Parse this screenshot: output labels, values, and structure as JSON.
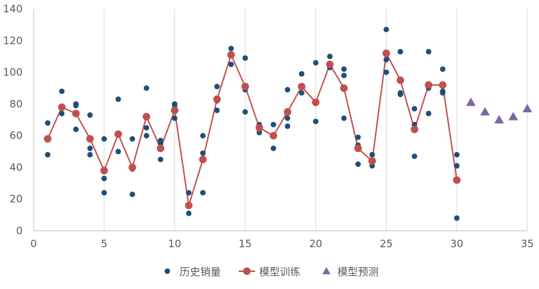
{
  "chart_data": {
    "type": "scatter",
    "xlim": [
      0,
      35
    ],
    "ylim": [
      0,
      140
    ],
    "x_ticks": [
      0,
      5,
      10,
      15,
      20,
      25,
      30,
      35
    ],
    "y_ticks": [
      0,
      20,
      40,
      60,
      80,
      100,
      120,
      140
    ],
    "grid": "vertical",
    "legend_position": "bottom",
    "colors": {
      "history": "#1f4e79",
      "training": "#c0504d",
      "forecast": "#8064a2",
      "grid": "#d9d9d9",
      "axis": "#bfbfbf",
      "text": "#595959"
    },
    "series": [
      {
        "name": "历史销量",
        "type": "scatter",
        "marker": "circle",
        "points": [
          [
            1,
            68
          ],
          [
            1,
            58
          ],
          [
            1,
            48
          ],
          [
            2,
            88
          ],
          [
            2,
            74
          ],
          [
            3,
            80
          ],
          [
            3,
            79
          ],
          [
            3,
            64
          ],
          [
            4,
            73
          ],
          [
            4,
            52
          ],
          [
            4,
            48
          ],
          [
            5,
            58
          ],
          [
            5,
            33
          ],
          [
            5,
            24
          ],
          [
            6,
            83
          ],
          [
            6,
            50
          ],
          [
            7,
            58
          ],
          [
            7,
            39
          ],
          [
            7,
            23
          ],
          [
            8,
            90
          ],
          [
            8,
            65
          ],
          [
            8,
            60
          ],
          [
            9,
            57
          ],
          [
            9,
            55
          ],
          [
            9,
            45
          ],
          [
            10,
            80
          ],
          [
            10,
            79
          ],
          [
            10,
            71
          ],
          [
            11,
            24
          ],
          [
            11,
            11
          ],
          [
            12,
            60
          ],
          [
            12,
            49
          ],
          [
            12,
            24
          ],
          [
            13,
            91
          ],
          [
            13,
            82
          ],
          [
            13,
            76
          ],
          [
            14,
            115
          ],
          [
            14,
            105
          ],
          [
            15,
            109
          ],
          [
            15,
            89
          ],
          [
            15,
            75
          ],
          [
            16,
            67
          ],
          [
            16,
            62
          ],
          [
            17,
            67
          ],
          [
            17,
            52
          ],
          [
            18,
            89
          ],
          [
            18,
            71
          ],
          [
            18,
            66
          ],
          [
            19,
            99
          ],
          [
            19,
            87
          ],
          [
            20,
            106
          ],
          [
            20,
            69
          ],
          [
            21,
            110
          ],
          [
            21,
            103
          ],
          [
            22,
            102
          ],
          [
            22,
            98
          ],
          [
            22,
            71
          ],
          [
            23,
            59
          ],
          [
            23,
            54
          ],
          [
            23,
            42
          ],
          [
            24,
            48
          ],
          [
            24,
            44
          ],
          [
            24,
            41
          ],
          [
            25,
            127
          ],
          [
            25,
            108
          ],
          [
            25,
            100
          ],
          [
            26,
            113
          ],
          [
            26,
            87
          ],
          [
            26,
            86
          ],
          [
            27,
            77
          ],
          [
            27,
            67
          ],
          [
            27,
            47
          ],
          [
            28,
            113
          ],
          [
            28,
            90
          ],
          [
            28,
            74
          ],
          [
            29,
            102
          ],
          [
            29,
            88
          ],
          [
            29,
            87
          ],
          [
            30,
            48
          ],
          [
            30,
            41
          ],
          [
            30,
            8
          ]
        ]
      },
      {
        "name": "模型训练",
        "type": "line",
        "marker": "circle",
        "x": [
          1,
          2,
          3,
          4,
          5,
          6,
          7,
          8,
          9,
          10,
          11,
          12,
          13,
          14,
          15,
          16,
          17,
          18,
          19,
          20,
          21,
          22,
          23,
          24,
          25,
          26,
          27,
          28,
          29,
          30
        ],
        "y": [
          58,
          78,
          74,
          58,
          38,
          61,
          40,
          72,
          52,
          76,
          16,
          45,
          83,
          111,
          91,
          65,
          60,
          75,
          91,
          81,
          105,
          90,
          52,
          44,
          112,
          95,
          64,
          92,
          92,
          32
        ]
      },
      {
        "name": "模型预测",
        "type": "scatter",
        "marker": "triangle",
        "x": [
          31,
          32,
          33,
          34,
          35
        ],
        "y": [
          81,
          75,
          70,
          72,
          77
        ]
      }
    ]
  }
}
